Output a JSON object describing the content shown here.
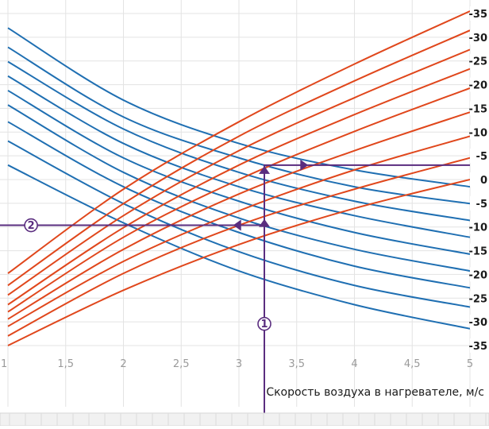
{
  "chart_data": {
    "type": "line",
    "title": "",
    "xlabel": "Скорость воздуха в нагревателе, м/с",
    "ylabel": "",
    "xlim": [
      1,
      5
    ],
    "ylim": [
      -35,
      35
    ],
    "x_ticks": [
      "1",
      "1,5",
      "2",
      "2,5",
      "3",
      "3,5",
      "4",
      "4,5",
      "5"
    ],
    "y_ticks": [
      "-35",
      "-30",
      "-25",
      "-20",
      "-15",
      "-10",
      "-5",
      "0",
      "-5",
      "-10",
      "-15",
      "-20",
      "-25",
      "-30",
      "-35"
    ],
    "grid": true,
    "colors": {
      "blue": "#1f6fb2",
      "red": "#e0471c",
      "purple": "#5a2d7f",
      "grid": "#e3e3e3"
    },
    "series": [
      {
        "color": "blue",
        "x": [
          1,
          2,
          3,
          4,
          5
        ],
        "y": [
          31.5,
          16.5,
          7.5,
          2.0,
          -1.5
        ]
      },
      {
        "color": "blue",
        "x": [
          1,
          2,
          3,
          4,
          5
        ],
        "y": [
          27.5,
          13.0,
          4.5,
          -1.5,
          -5.0
        ]
      },
      {
        "color": "blue",
        "x": [
          1,
          2,
          3,
          4,
          5
        ],
        "y": [
          24.5,
          10.5,
          1.5,
          -4.5,
          -8.5
        ]
      },
      {
        "color": "blue",
        "x": [
          1,
          2,
          3,
          4,
          5
        ],
        "y": [
          21.5,
          7.5,
          -1.5,
          -7.5,
          -12.0
        ]
      },
      {
        "color": "blue",
        "x": [
          1,
          2,
          3,
          4,
          5
        ],
        "y": [
          18.5,
          4.5,
          -4.5,
          -11.0,
          -15.5
        ]
      },
      {
        "color": "blue",
        "x": [
          1,
          2,
          3,
          4,
          5
        ],
        "y": [
          15.5,
          1.5,
          -8.0,
          -14.5,
          -19.0
        ]
      },
      {
        "color": "blue",
        "x": [
          1,
          2,
          3,
          4,
          5
        ],
        "y": [
          12.0,
          -1.5,
          -11.0,
          -18.0,
          -22.5
        ]
      },
      {
        "color": "blue",
        "x": [
          1,
          2,
          3,
          4,
          5
        ],
        "y": [
          8.0,
          -5.0,
          -15.0,
          -22.0,
          -26.5
        ]
      },
      {
        "color": "blue",
        "x": [
          1,
          2,
          3,
          4,
          5
        ],
        "y": [
          3.0,
          -9.0,
          -19.0,
          -26.0,
          -31.0
        ]
      },
      {
        "color": "red",
        "x": [
          1,
          2,
          3,
          4,
          5
        ],
        "y": [
          -19.5,
          -2.0,
          12.0,
          24.0,
          35.0
        ]
      },
      {
        "color": "red",
        "x": [
          1,
          2,
          3,
          4,
          5
        ],
        "y": [
          -22.0,
          -5.0,
          9.0,
          20.5,
          31.0
        ]
      },
      {
        "color": "red",
        "x": [
          1,
          2,
          3,
          4,
          5
        ],
        "y": [
          -24.0,
          -7.5,
          6.0,
          17.0,
          27.0
        ]
      },
      {
        "color": "red",
        "x": [
          1,
          2,
          3,
          4,
          5
        ],
        "y": [
          -26.0,
          -10.0,
          3.0,
          13.5,
          23.0
        ]
      },
      {
        "color": "red",
        "x": [
          1,
          2,
          3,
          4,
          5
        ],
        "y": [
          -27.5,
          -12.0,
          0.0,
          10.0,
          19.0
        ]
      },
      {
        "color": "red",
        "x": [
          1,
          2,
          3,
          4,
          5
        ],
        "y": [
          -29.0,
          -14.5,
          -3.0,
          6.0,
          14.0
        ]
      },
      {
        "color": "red",
        "x": [
          1,
          2,
          3,
          4,
          5
        ],
        "y": [
          -30.5,
          -17.0,
          -6.5,
          2.0,
          9.0
        ]
      },
      {
        "color": "red",
        "x": [
          1,
          2,
          3,
          4,
          5
        ],
        "y": [
          -32.5,
          -19.5,
          -9.5,
          -2.0,
          4.5
        ]
      },
      {
        "color": "red",
        "x": [
          1,
          2,
          3,
          4,
          5
        ],
        "y": [
          -34.5,
          -23.0,
          -13.5,
          -6.0,
          0.0
        ]
      }
    ],
    "annotations": [
      {
        "label": "1",
        "x": 3.22,
        "y": -30.0
      },
      {
        "label": "2",
        "x": 1.2,
        "y": -9.5
      }
    ],
    "reading_paths": [
      {
        "points": [
          [
            3.22,
            -55
          ],
          [
            3.22,
            3.0
          ],
          [
            3.6,
            3.0
          ],
          [
            5.0,
            3.0
          ]
        ]
      },
      {
        "points": [
          [
            3.22,
            -9.5
          ],
          [
            0.8,
            -9.5
          ]
        ]
      }
    ]
  }
}
